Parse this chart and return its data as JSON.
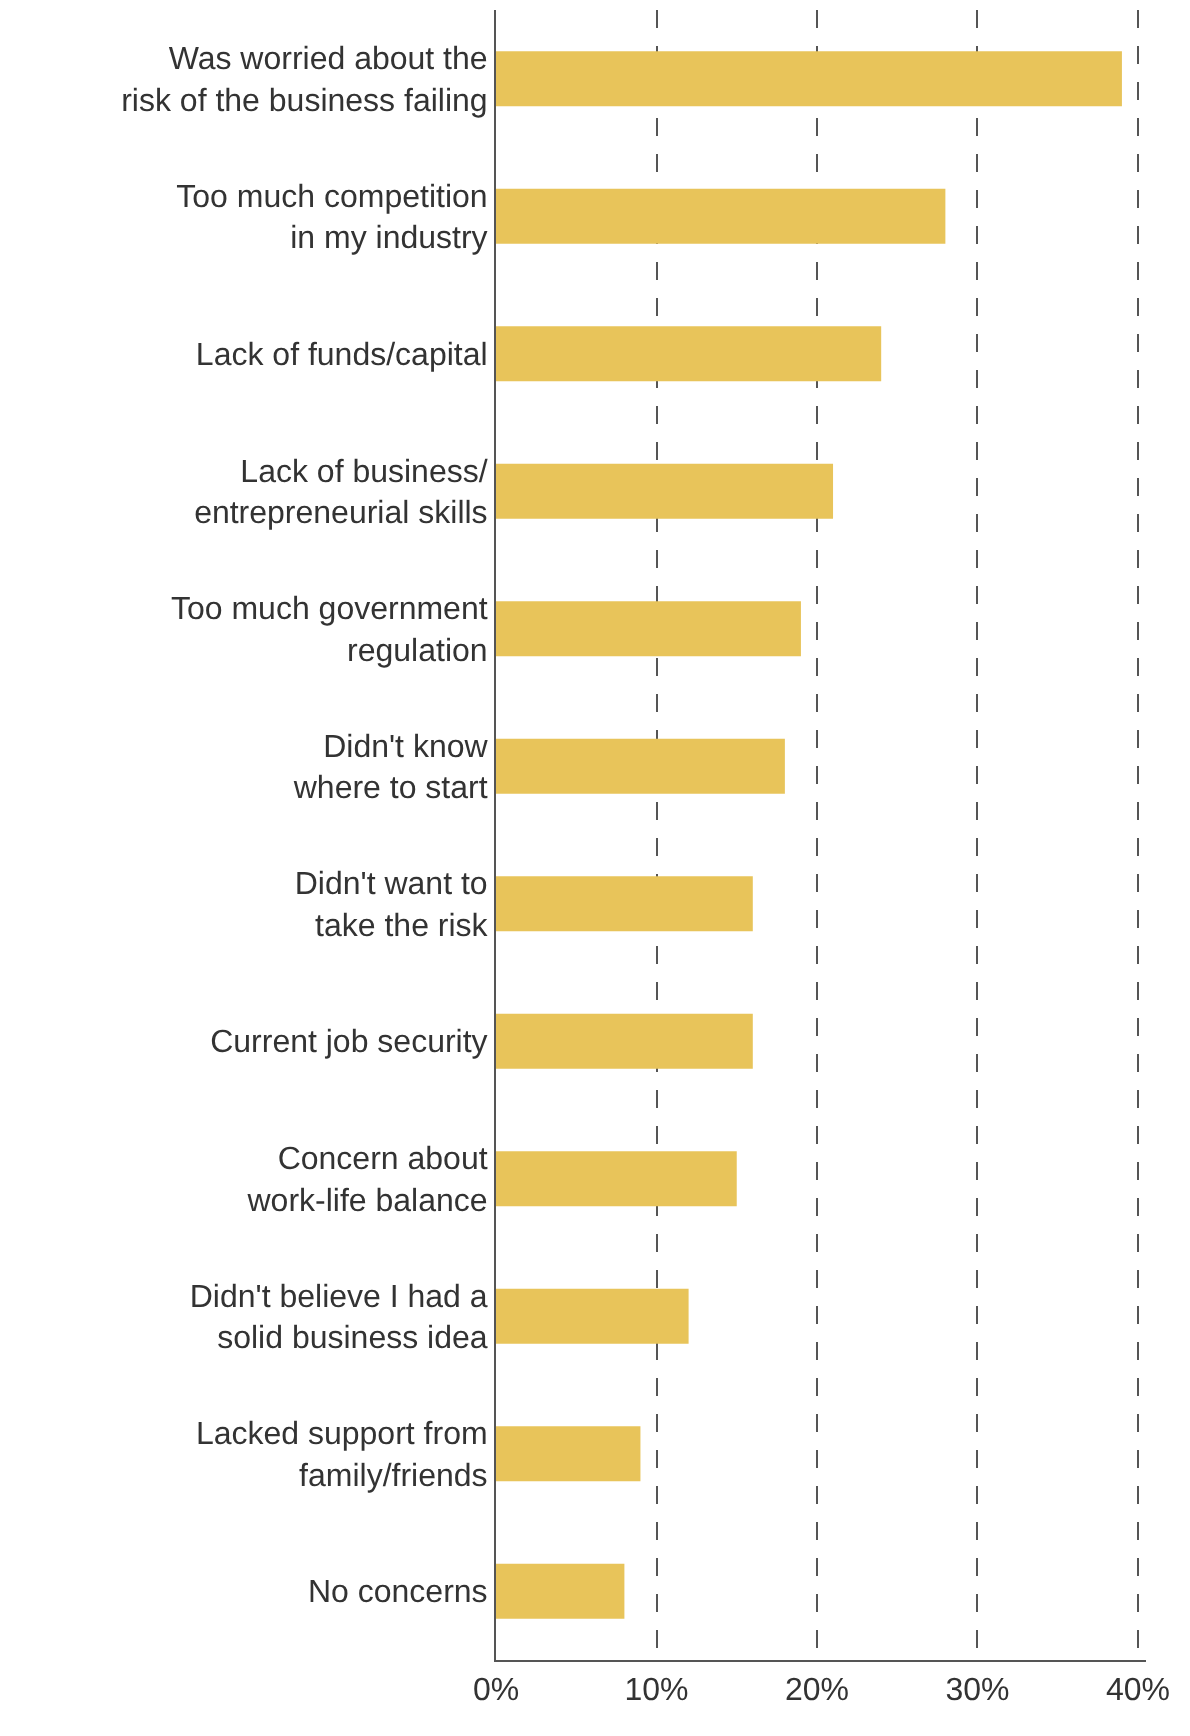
{
  "chart_data": {
    "type": "bar",
    "orientation": "horizontal",
    "categories": [
      "Was worried about the\nrisk of the business failing",
      "Too much competition\nin my industry",
      "Lack of funds/capital",
      "Lack of business/\nentrepreneurial skills",
      "Too much government\nregulation",
      "Didn't know\nwhere to start",
      "Didn't want to\ntake the risk",
      "Current job security",
      "Concern about\nwork-life balance",
      "Didn't believe I had a\nsolid business idea",
      "Lacked support from\nfamily/friends",
      "No concerns"
    ],
    "values": [
      39,
      28,
      24,
      21,
      19,
      18,
      16,
      16,
      15,
      12,
      9,
      8
    ],
    "color": "#e8c45a",
    "xlim": [
      0,
      40.5
    ],
    "xticks": [
      {
        "value": 0,
        "label": "0%"
      },
      {
        "value": 10,
        "label": "10%"
      },
      {
        "value": 20,
        "label": "20%"
      },
      {
        "value": 30,
        "label": "30%"
      },
      {
        "value": 40,
        "label": "40%"
      }
    ],
    "grid": "x",
    "line_style": "dashed"
  }
}
